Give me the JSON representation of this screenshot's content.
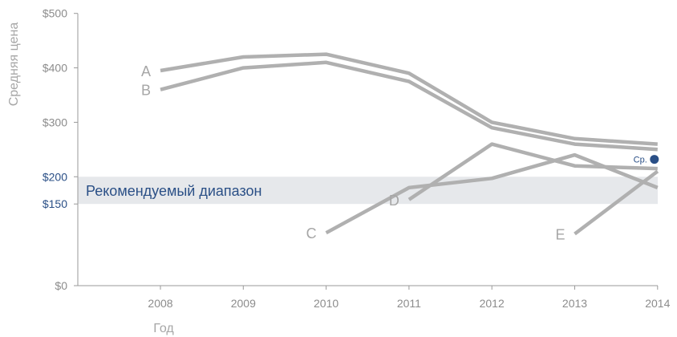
{
  "chart_data": {
    "type": "line",
    "title": "",
    "xlabel": "Год",
    "ylabel": "Средняя цена",
    "categories": [
      "2008",
      "2009",
      "2010",
      "2011",
      "2012",
      "2013",
      "2014"
    ],
    "ylim": [
      0,
      500
    ],
    "y_ticks": [
      {
        "value": 0,
        "label": "$0",
        "highlight": false
      },
      {
        "value": 150,
        "label": "$150",
        "highlight": true
      },
      {
        "value": 200,
        "label": "$200",
        "highlight": true
      },
      {
        "value": 300,
        "label": "$300",
        "highlight": false
      },
      {
        "value": 400,
        "label": "$400",
        "highlight": false
      },
      {
        "value": 500,
        "label": "$500",
        "highlight": false
      }
    ],
    "band": {
      "from": 150,
      "to": 200,
      "label": "Рекомендуемый диапазон",
      "color": "#e6e8eb"
    },
    "series": [
      {
        "name": "A",
        "x": [
          "2008",
          "2009",
          "2010",
          "2011",
          "2012",
          "2013",
          "2014"
        ],
        "values": [
          395,
          420,
          425,
          390,
          300,
          270,
          260
        ]
      },
      {
        "name": "B",
        "x": [
          "2008",
          "2009",
          "2010",
          "2011",
          "2012",
          "2013",
          "2014"
        ],
        "values": [
          360,
          400,
          410,
          375,
          290,
          260,
          250
        ]
      },
      {
        "name": "C",
        "x": [
          "2010",
          "2011",
          "2012",
          "2013",
          "2014"
        ],
        "values": [
          97,
          180,
          197,
          240,
          180
        ]
      },
      {
        "name": "D",
        "x": [
          "2011",
          "2012",
          "2013",
          "2014"
        ],
        "values": [
          158,
          260,
          220,
          215
        ]
      },
      {
        "name": "E",
        "x": [
          "2013",
          "2014"
        ],
        "values": [
          95,
          210
        ]
      }
    ],
    "average": {
      "label": "Ср.",
      "x": "2014",
      "value": 232
    },
    "colors": {
      "line": "#b0b0b0",
      "accent": "#2a4f86",
      "axis": "#9a9a9a"
    },
    "grid": false,
    "legend": "none"
  }
}
